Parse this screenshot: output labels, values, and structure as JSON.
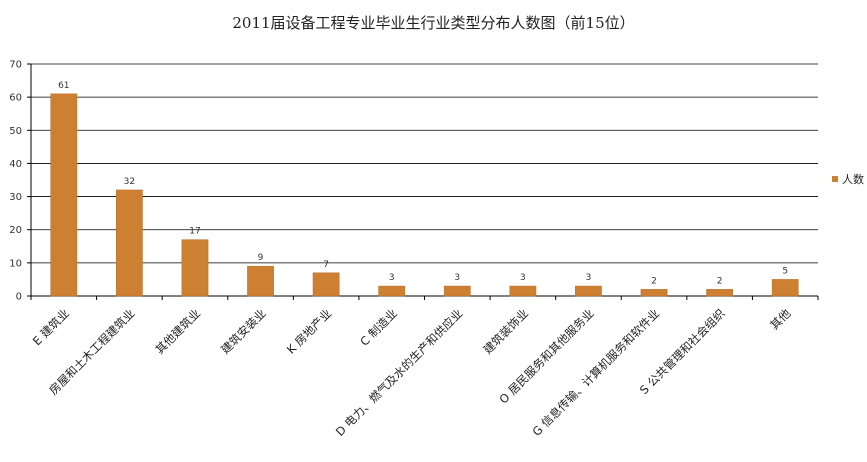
{
  "chart_data": {
    "type": "bar",
    "title": "2011届设备工程专业毕业生行业类型分布人数图（前15位）",
    "xlabel": "",
    "ylabel": "",
    "ylim": [
      0,
      70
    ],
    "yticks": [
      0,
      10,
      20,
      30,
      40,
      50,
      60,
      70
    ],
    "grid": true,
    "legend_position": "right",
    "bar_color": "#CD7F32",
    "categories": [
      "E 建筑业",
      "房屋和土木工程建筑业",
      "其他建筑业",
      "建筑安装业",
      "K 房地产业",
      "C 制造业",
      "D 电力、燃气及水的生产和供应业",
      "建筑装饰业",
      "O 居民服务和其他服务业",
      "G 信息传输、计算机服务和软件业",
      "S 公共管理和社会组织",
      "其他"
    ],
    "series": [
      {
        "name": "人数",
        "values": [
          61,
          32,
          17,
          9,
          7,
          3,
          3,
          3,
          3,
          2,
          2,
          5
        ]
      }
    ]
  }
}
